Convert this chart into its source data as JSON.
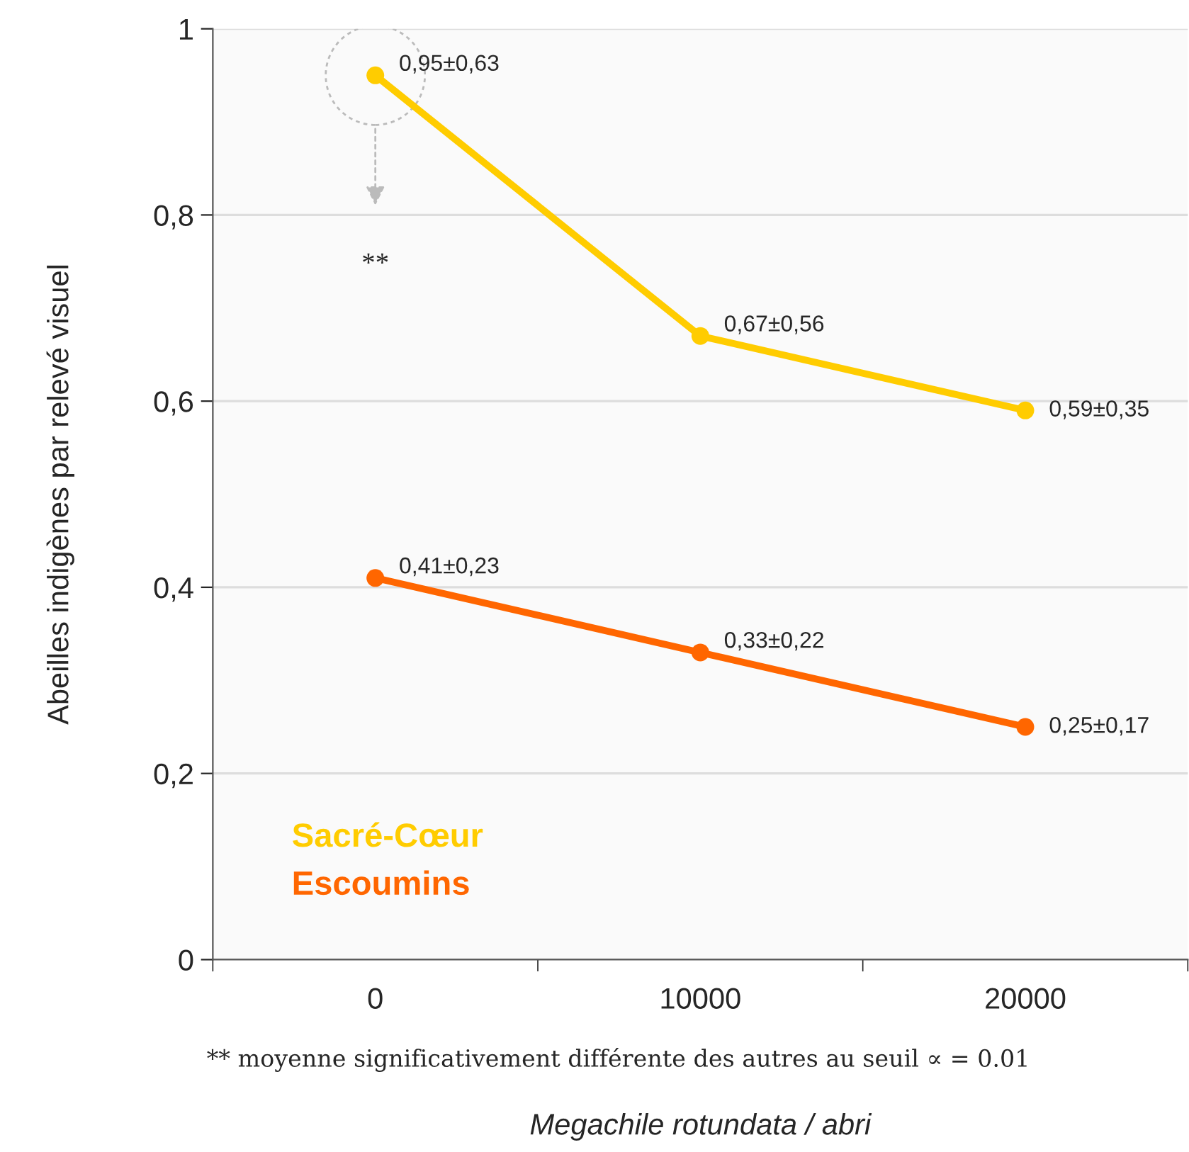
{
  "chart_data": {
    "type": "line",
    "categories": [
      "0",
      "10000",
      "20000"
    ],
    "series": [
      {
        "name": "Sacré-Cœur",
        "color": "#ffcc00",
        "values": [
          0.95,
          0.67,
          0.59
        ],
        "value_labels": [
          "0,95±0,63",
          "0,67±0,56",
          "0,59±0,35"
        ]
      },
      {
        "name": "Escoumins",
        "color": "#ff6600",
        "values": [
          0.41,
          0.33,
          0.25
        ],
        "value_labels": [
          "0,41±0,23",
          "0,33±0,22",
          "0,25±0,17"
        ]
      }
    ],
    "ylim": [
      0,
      1
    ],
    "yticks": [
      {
        "value": 0,
        "label": "0"
      },
      {
        "value": 0.2,
        "label": "0,2"
      },
      {
        "value": 0.4,
        "label": "0,4"
      },
      {
        "value": 0.6,
        "label": "0,6"
      },
      {
        "value": 0.8,
        "label": "0,8"
      },
      {
        "value": 1,
        "label": "1"
      }
    ],
    "ylabel": "Abeilles indigènes par relevé visuel",
    "xlabel": "Megachile rotundata / abri",
    "grid": "y",
    "legend": "bottom left",
    "marker": "circle",
    "line_style": "solid",
    "annotations": [
      "**",
      "** moyenne significativement différente des autres au seuil ∝ = 0.01"
    ]
  }
}
